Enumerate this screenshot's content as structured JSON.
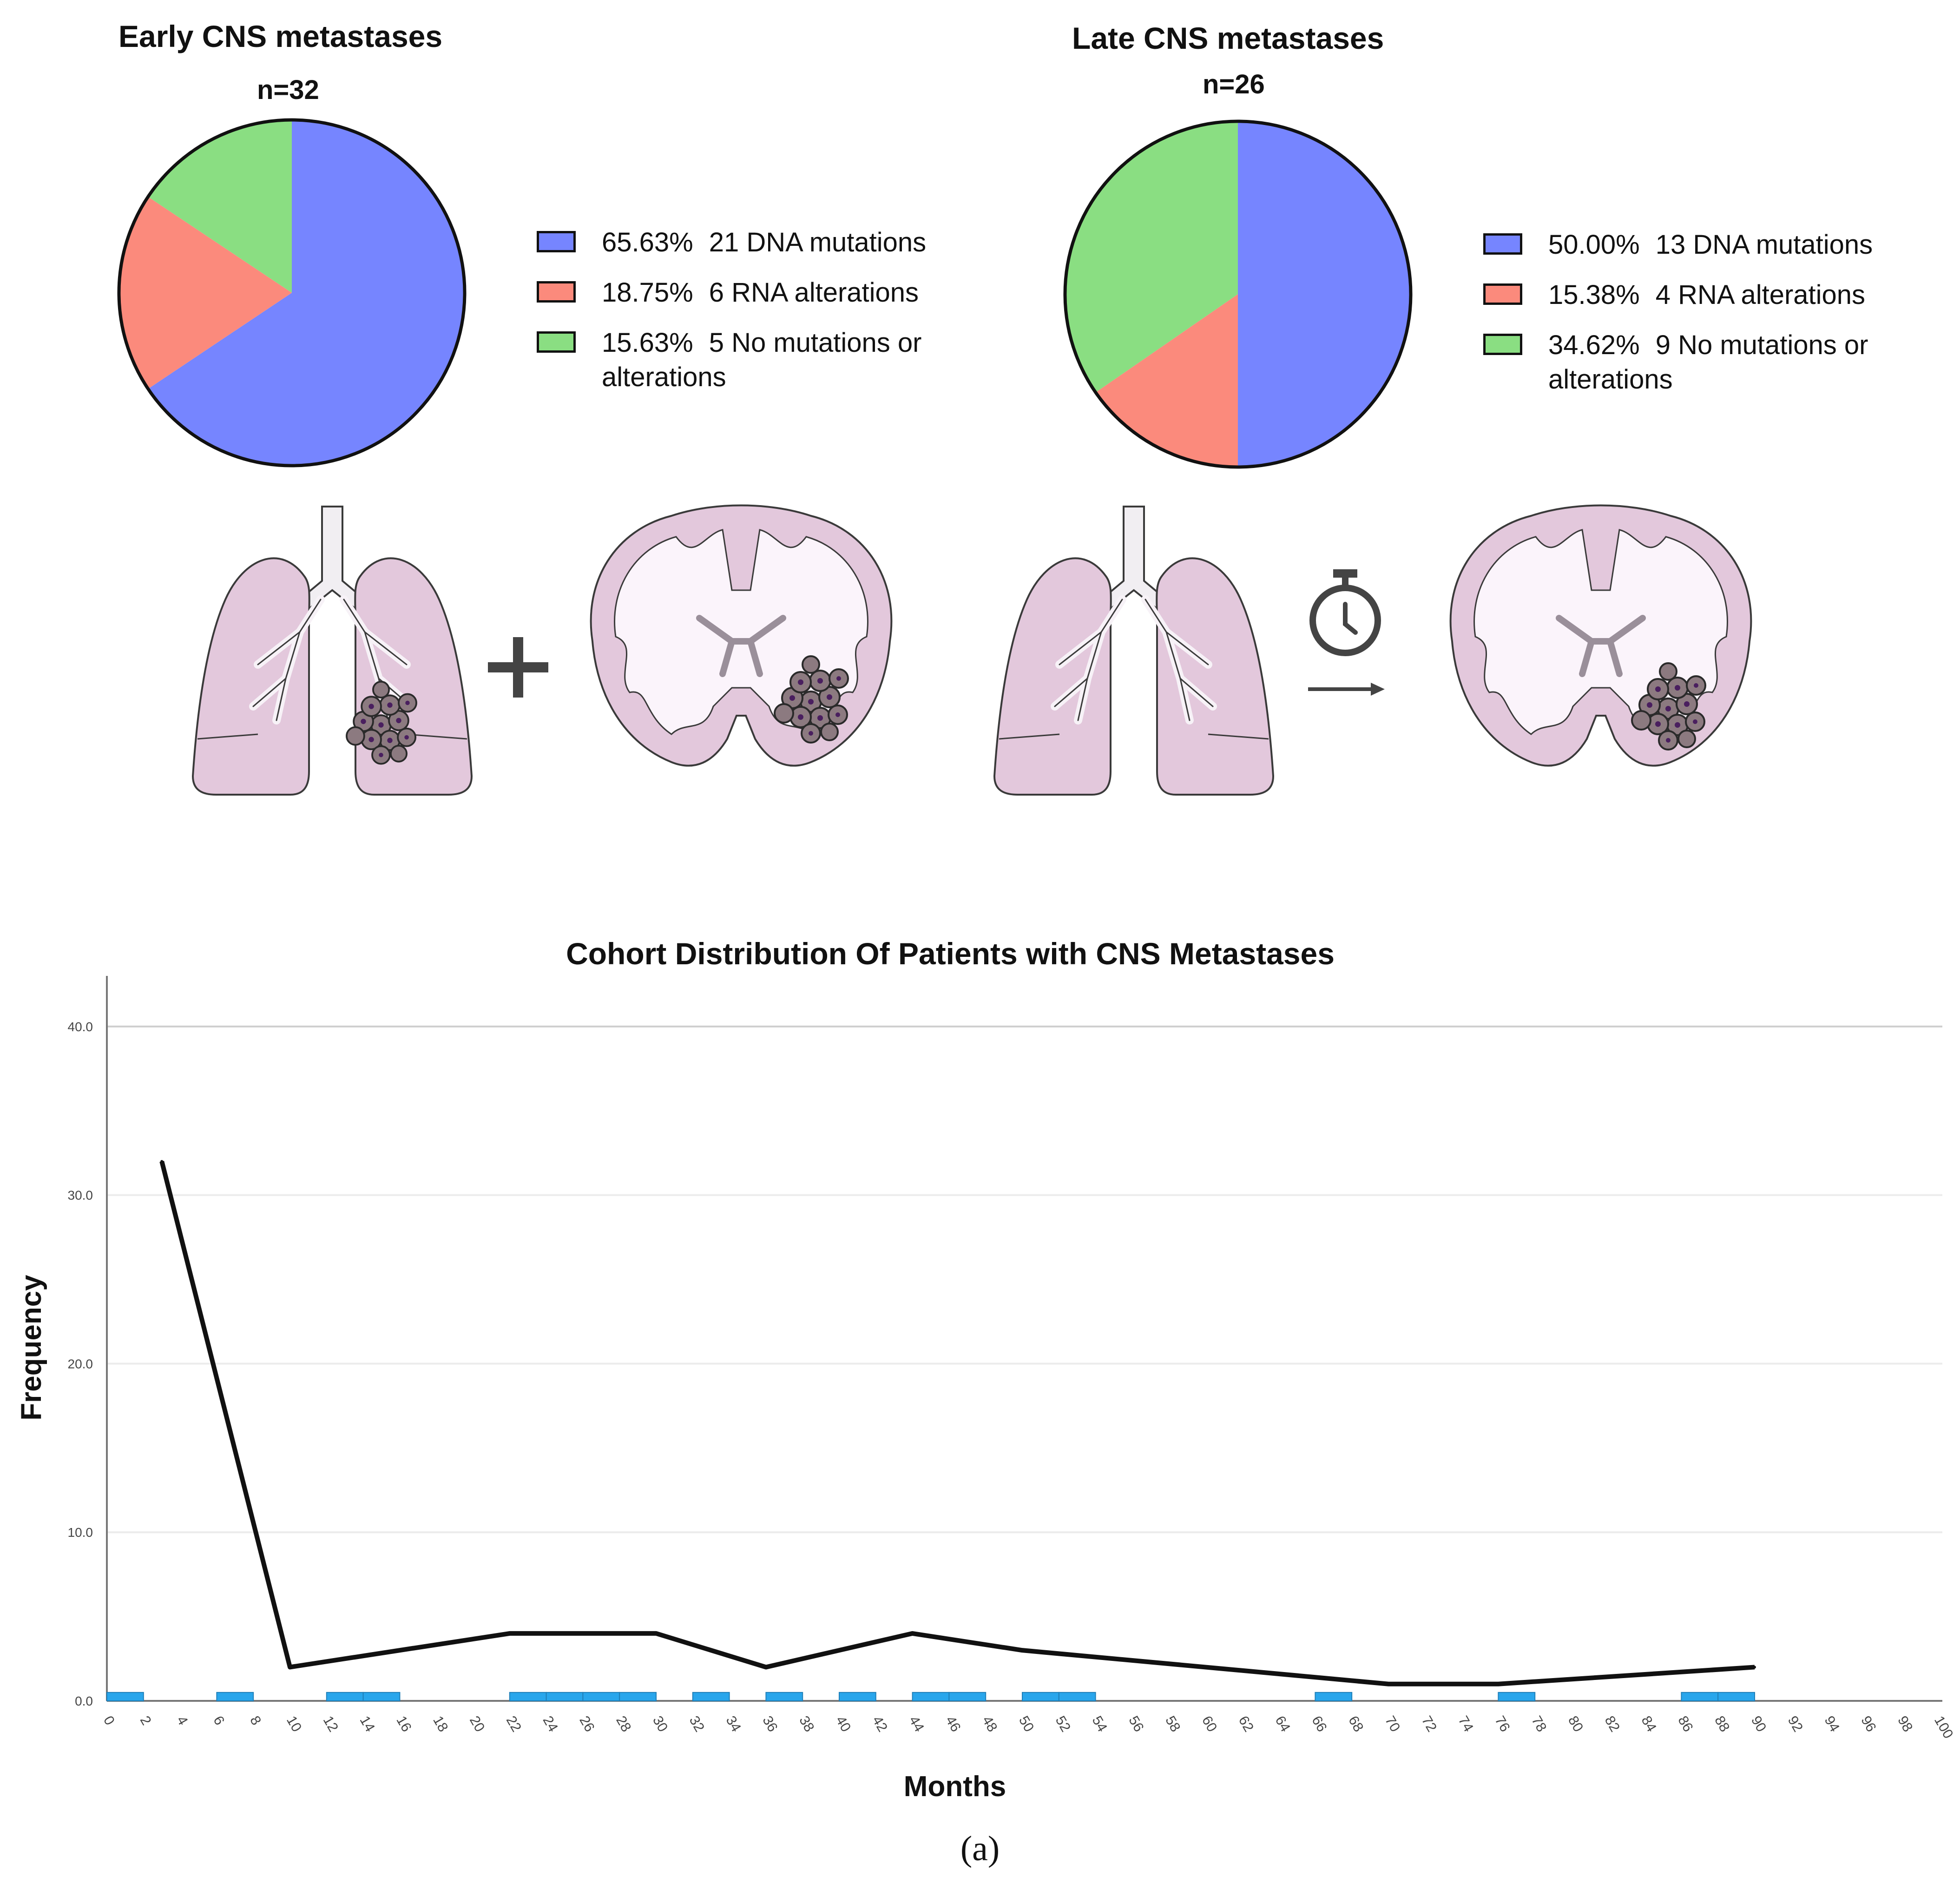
{
  "chart_data": [
    {
      "type": "pie",
      "title": "Early CNS metastases",
      "n_label": "n=32",
      "slices": [
        {
          "label": "DNA mutations",
          "count": 21,
          "percent_label": "65.63%",
          "text": "21 DNA mutations",
          "value": 65.63,
          "color": "#7685ff"
        },
        {
          "label": "RNA alterations",
          "count": 6,
          "percent_label": "18.75%",
          "text": "6 RNA alterations",
          "value": 18.75,
          "color": "#fb8a7c"
        },
        {
          "label": "No mutations or alterations",
          "count": 5,
          "percent_label": "15.63%",
          "text": "5 No mutations or alterations",
          "value": 15.63,
          "color": "#8ade82"
        }
      ]
    },
    {
      "type": "pie",
      "title": "Late CNS metastases",
      "n_label": "n=26",
      "slices": [
        {
          "label": "DNA mutations",
          "count": 13,
          "percent_label": "50.00%",
          "text": "13 DNA mutations",
          "value": 50.0,
          "color": "#7685ff"
        },
        {
          "label": "RNA alterations",
          "count": 4,
          "percent_label": "15.38%",
          "text": "4 RNA alterations",
          "value": 15.38,
          "color": "#fb8a7c"
        },
        {
          "label": "No mutations or alterations",
          "count": 9,
          "percent_label": "34.62%",
          "text": "9 No mutations or alterations",
          "value": 34.62,
          "color": "#8ade82"
        }
      ]
    },
    {
      "type": "line",
      "title": "Cohort Distribution Of Patients with CNS Metastases",
      "xlabel": "Months",
      "ylabel": "Frequency",
      "xlim": [
        0,
        100
      ],
      "ylim": [
        0,
        43
      ],
      "x_ticks": [
        0,
        2,
        4,
        6,
        8,
        10,
        12,
        14,
        16,
        18,
        20,
        22,
        24,
        26,
        28,
        30,
        32,
        34,
        36,
        38,
        40,
        42,
        44,
        46,
        48,
        50,
        52,
        54,
        56,
        58,
        60,
        62,
        64,
        66,
        68,
        70,
        72,
        74,
        76,
        78,
        80,
        82,
        84,
        86,
        88,
        90,
        92,
        94,
        96,
        98,
        100
      ],
      "y_ticks": [
        0,
        10,
        20,
        30,
        40
      ],
      "y_tick_labels": [
        "0.0",
        "10.0",
        "20.0",
        "30.0",
        "40.0"
      ],
      "grid": true,
      "series": [
        {
          "name": "Frequency",
          "color": "#111111",
          "x": [
            3,
            10,
            22,
            30,
            36,
            44,
            50,
            70,
            76,
            90
          ],
          "y": [
            32,
            2,
            4,
            4,
            2,
            4,
            3,
            1,
            1,
            2
          ]
        }
      ],
      "month_markers": {
        "color": "#29a6ec",
        "starts": [
          0,
          6,
          12,
          14,
          22,
          24,
          26,
          28,
          32,
          36,
          40,
          44,
          46,
          50,
          52,
          66,
          76,
          86,
          88
        ],
        "width": 2,
        "height": 0.5
      }
    }
  ],
  "caption": "(a)",
  "illustrations": {
    "early": [
      "lung-tumor",
      "plus",
      "brain-tumor"
    ],
    "late": [
      "lung",
      "stopwatch",
      "arrow",
      "brain-tumor"
    ]
  }
}
